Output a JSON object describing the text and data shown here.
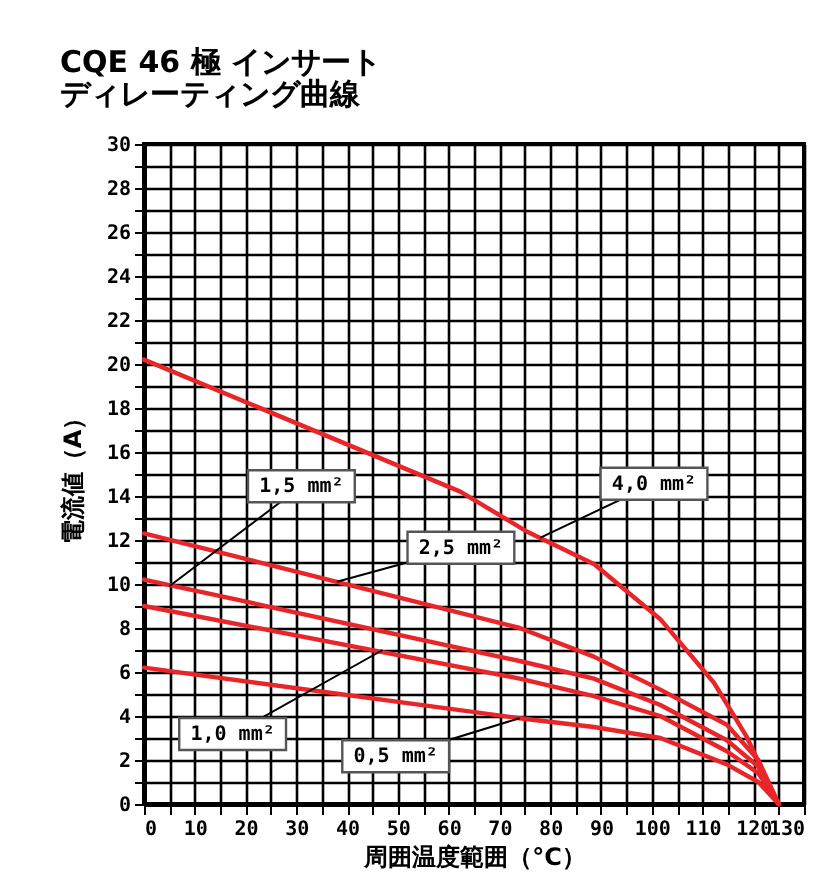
{
  "chart_data": {
    "type": "line",
    "title": "CQE 46 極 インサート",
    "subtitle": "ディレーティング曲線",
    "xlabel": "周囲温度範囲（°C）",
    "ylabel": "電流値（A）",
    "xlim": [
      0,
      130
    ],
    "ylim": [
      0,
      30
    ],
    "xticks": [
      0,
      {
        "value": 5,
        "label": null
      },
      10,
      {
        "value": 15,
        "label": null
      },
      20,
      {
        "value": 25,
        "label": null
      },
      30,
      {
        "value": 35,
        "label": null
      },
      40,
      {
        "value": 45,
        "label": null
      },
      50,
      {
        "value": 55,
        "label": null
      },
      60,
      {
        "value": 65,
        "label": null
      },
      70,
      {
        "value": 75,
        "label": null
      },
      80,
      {
        "value": 85,
        "label": null
      },
      90,
      {
        "value": 95,
        "label": null
      },
      100,
      {
        "value": 105,
        "label": null
      },
      110,
      {
        "value": 115,
        "label": null
      },
      120,
      {
        "value": 125,
        "label": null
      },
      130
    ],
    "yticks": [
      0,
      {
        "value": 1,
        "label": null
      },
      2,
      {
        "value": 3,
        "label": null
      },
      4,
      {
        "value": 5,
        "label": null
      },
      6,
      {
        "value": 7,
        "label": null
      },
      8,
      {
        "value": 9,
        "label": null
      },
      10,
      {
        "value": 11,
        "label": null
      },
      12,
      {
        "value": 13,
        "label": null
      },
      14,
      {
        "value": 15,
        "label": null
      },
      16,
      {
        "value": 17,
        "label": null
      },
      18,
      {
        "value": 19,
        "label": null
      },
      20,
      {
        "value": 21,
        "label": null
      },
      22,
      {
        "value": 23,
        "label": null
      },
      24,
      {
        "value": 25,
        "label": null
      },
      26,
      {
        "value": 27,
        "label": null
      },
      28,
      {
        "value": 29,
        "label": null
      },
      30
    ],
    "grid": true,
    "line_style": "solid",
    "series": [
      {
        "color": "#e8262a",
        "x": [
          0,
          74,
          88.6,
          101.7,
          114.8,
          121,
          125
        ],
        "values": [
          6.2,
          3.9,
          3.5,
          3.0,
          1.8,
          1.0,
          0
        ]
      },
      {
        "color": "#e8262a",
        "x": [
          0,
          74,
          88.6,
          101.7,
          114.8,
          121,
          125
        ],
        "values": [
          9.0,
          5.7,
          4.9,
          4.0,
          2.4,
          1.4,
          0
        ]
      },
      {
        "color": "#e8262a",
        "x": [
          0,
          74,
          88.6,
          101.7,
          114.8,
          121,
          125
        ],
        "values": [
          10.2,
          6.5,
          5.7,
          4.5,
          2.9,
          1.7,
          0
        ]
      },
      {
        "color": "#e8262a",
        "x": [
          0,
          74,
          88.6,
          101.7,
          114.8,
          121,
          125
        ],
        "values": [
          12.3,
          8.0,
          6.7,
          5.2,
          3.6,
          2.0,
          0
        ]
      },
      {
        "color": "#e8262a",
        "x": [
          0,
          62.3,
          75.3,
          88.7,
          101.7,
          112.3,
          118.6,
          125
        ],
        "values": [
          20.2,
          14.2,
          12.4,
          10.9,
          8.4,
          5.5,
          3.1,
          0
        ]
      }
    ],
    "annotations": [
      {
        "text": "1,5 mm²",
        "x": 5,
        "y": 9.9
      },
      {
        "text": "2,5 mm²",
        "x": 38,
        "y": 10.1
      },
      {
        "text": "4,0 mm²",
        "x": 78,
        "y": 12.1
      },
      {
        "text": "1,0 mm²",
        "x": 47,
        "y": 7.0
      },
      {
        "text": "0,5 mm²",
        "x": 74,
        "y": 3.9
      }
    ]
  }
}
